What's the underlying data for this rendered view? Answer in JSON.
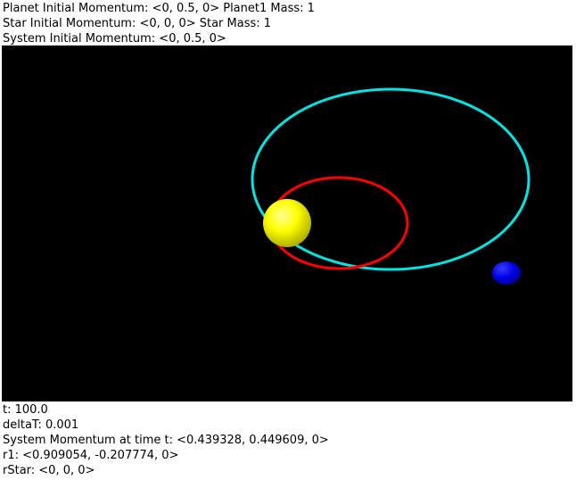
{
  "header": {
    "planet_initial_momentum": "Planet Initial Momentum: <0, 0.5, 0> Planet1 Mass: 1",
    "star_initial_momentum": "Star Initial Momentum: <0, 0, 0> Star Mass: 1",
    "system_initial_momentum": "System Initial Momentum: <0, 0.5, 0>"
  },
  "scene": {
    "background": "#000000",
    "star_color": "#ffff00",
    "planet_color": "#0000ff",
    "star_orbit_color": "#ff0000",
    "planet_orbit_color": "#00e5e5"
  },
  "footer": {
    "time": "t: 100.0",
    "delta_t": "deltaT: 0.001",
    "system_momentum": "System Momentum at time t: <0.439328, 0.449609, 0>",
    "r1": "r1: <0.909054, -0.207774, 0>",
    "r_star": "rStar: <0, 0, 0>"
  }
}
